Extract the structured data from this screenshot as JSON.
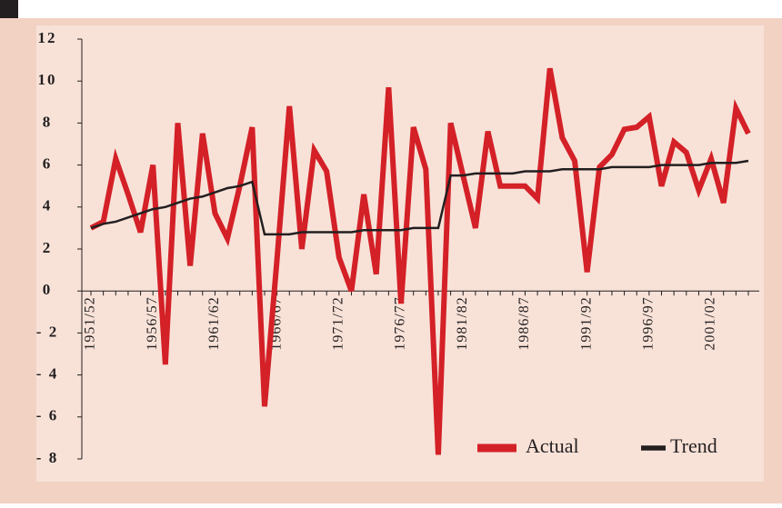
{
  "chart_data": {
    "type": "line",
    "categories": [
      "1951/52",
      null,
      null,
      null,
      null,
      "1956/57",
      null,
      null,
      null,
      null,
      "1961/62",
      null,
      null,
      null,
      null,
      "1966/67",
      null,
      null,
      null,
      null,
      "1971/72",
      null,
      null,
      null,
      null,
      "1976/77",
      null,
      null,
      null,
      null,
      "1981/82",
      null,
      null,
      null,
      null,
      "1986/87",
      null,
      null,
      null,
      null,
      "1991/92",
      null,
      null,
      null,
      null,
      "1996/97",
      null,
      null,
      null,
      null,
      "2001/02",
      null,
      null,
      null
    ],
    "series": [
      {
        "name": "Actual",
        "color": "#d42027",
        "width": 6,
        "values": [
          3.0,
          3.3,
          6.3,
          4.6,
          2.8,
          6.0,
          -3.5,
          8.0,
          1.2,
          7.5,
          3.7,
          2.5,
          5.0,
          7.8,
          -5.5,
          1.5,
          8.8,
          2.0,
          6.7,
          5.7,
          1.6,
          0.0,
          4.6,
          0.8,
          9.7,
          -0.6,
          7.8,
          5.8,
          -7.8,
          8.0,
          5.5,
          3.0,
          7.6,
          5.0,
          5.0,
          5.0,
          4.4,
          10.6,
          7.3,
          6.2,
          0.9,
          5.9,
          6.5,
          7.7,
          7.8,
          8.3,
          5.0,
          7.1,
          6.6,
          4.8,
          6.3,
          4.2,
          8.7,
          7.5
        ]
      },
      {
        "name": "Trend",
        "color": "#231f20",
        "width": 2.5,
        "values": [
          3.0,
          3.2,
          3.3,
          3.5,
          3.7,
          3.9,
          4.0,
          4.2,
          4.4,
          4.5,
          4.7,
          4.9,
          5.0,
          5.2,
          2.7,
          2.7,
          2.7,
          2.8,
          2.8,
          2.8,
          2.8,
          2.8,
          2.9,
          2.9,
          2.9,
          2.9,
          3.0,
          3.0,
          3.0,
          5.5,
          5.5,
          5.6,
          5.6,
          5.6,
          5.6,
          5.7,
          5.7,
          5.7,
          5.8,
          5.8,
          5.8,
          5.8,
          5.9,
          5.9,
          5.9,
          5.9,
          6.0,
          6.0,
          6.0,
          6.0,
          6.1,
          6.1,
          6.1,
          6.2
        ]
      }
    ],
    "ylim": [
      -8,
      12
    ],
    "yticks": [
      {
        "value": -8,
        "label": "- 8"
      },
      {
        "value": -6,
        "label": "- 6"
      },
      {
        "value": -4,
        "label": "- 4"
      },
      {
        "value": -2,
        "label": "- 2"
      },
      0,
      2,
      4,
      6,
      8,
      10,
      12
    ],
    "legend": "lower right"
  }
}
